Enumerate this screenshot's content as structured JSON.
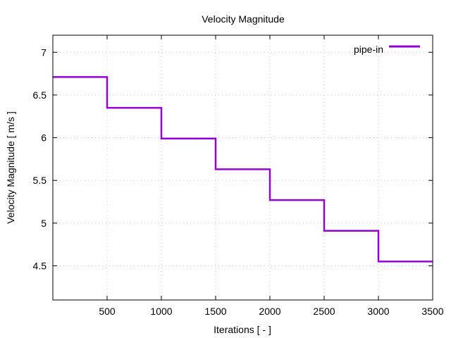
{
  "chart_data": {
    "type": "line",
    "title": "Velocity Magnitude",
    "xlabel": "Iterations [ - ]",
    "ylabel": "Velocity Magnitude [ m/s ]",
    "xlim": [
      0,
      3500
    ],
    "ylim": [
      4.1,
      7.2
    ],
    "xticks": [
      500,
      1000,
      1500,
      2000,
      2500,
      3000,
      3500
    ],
    "xtick_labels": [
      "500",
      "1000",
      "1500",
      "2000",
      "2500",
      "3000",
      "3500"
    ],
    "yticks": [
      4.5,
      5,
      5.5,
      6,
      6.5,
      7
    ],
    "ytick_labels": [
      "4.5",
      "5",
      "5.5",
      "6",
      "6.5",
      "7"
    ],
    "grid": true,
    "legend_position": "top-right",
    "step_style": "post",
    "series": [
      {
        "name": "pipe-in",
        "color": "#9400d3",
        "x": [
          0,
          500,
          1000,
          1500,
          2000,
          2500,
          3000,
          3500
        ],
        "y": [
          6.71,
          6.35,
          5.99,
          5.63,
          5.27,
          4.91,
          4.55,
          4.55
        ]
      }
    ]
  }
}
